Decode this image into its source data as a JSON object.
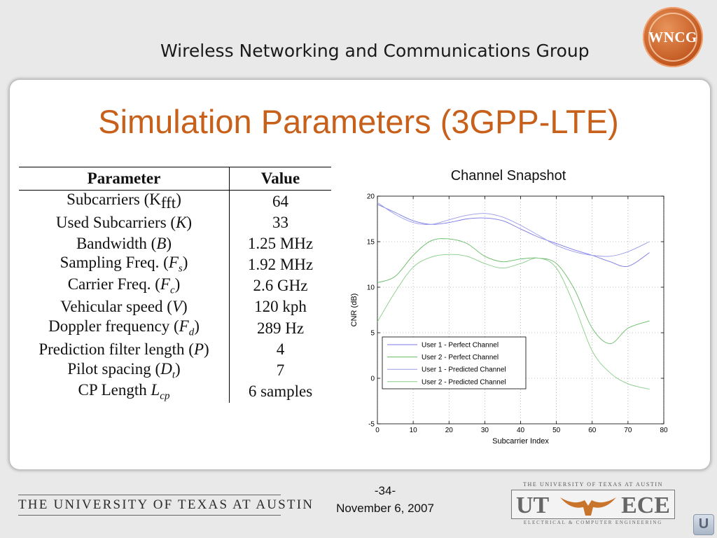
{
  "header": {
    "org": "Wireless Networking and Communications Group",
    "logo_text": "WNCG"
  },
  "slide": {
    "title": "Simulation Parameters (3GPP-LTE)"
  },
  "table": {
    "headers": [
      "Parameter",
      "Value"
    ],
    "rows": [
      {
        "param": "Subcarriers (K",
        "sym": "fft",
        "close": ")",
        "value": "64"
      },
      {
        "param": "Used Subcarriers (",
        "sym": "K",
        "close": ")",
        "value": "33"
      },
      {
        "param": "Bandwidth (",
        "sym": "B",
        "close": ")",
        "value": "1.25 MHz"
      },
      {
        "param": "Sampling Freq. (",
        "sym": "F",
        "sub": "s",
        "close": ")",
        "value": "1.92 MHz"
      },
      {
        "param": "Carrier Freq. (",
        "sym": "F",
        "sub": "c",
        "close": ")",
        "value": "2.6 GHz"
      },
      {
        "param": "Vehicular speed (",
        "sym": "V",
        "close": ")",
        "value": "120 kph"
      },
      {
        "param": "Doppler frequency (",
        "sym": "F",
        "sub": "d",
        "close": ")",
        "value": "289 Hz"
      },
      {
        "param": "Prediction filter length (",
        "sym": "P",
        "close": ")",
        "value": "4"
      },
      {
        "param": "Pilot spacing (",
        "sym": "D",
        "sub": "t",
        "close": ")",
        "value": "7"
      },
      {
        "param": "CP Length ",
        "sym": "L",
        "sub": "cp",
        "close": "",
        "value": "6 samples"
      }
    ]
  },
  "chart_data": {
    "type": "line",
    "title": "Channel Snapshot",
    "xlabel": "Subcarrier Index",
    "ylabel": "CNR (dB)",
    "xlim": [
      0,
      80
    ],
    "ylim": [
      -5,
      20
    ],
    "xticks": [
      0,
      10,
      20,
      30,
      40,
      50,
      60,
      70,
      80
    ],
    "yticks": [
      -5,
      0,
      5,
      10,
      15,
      20
    ],
    "grid": true,
    "legend_position": "lower-left",
    "series": [
      {
        "name": "User 1 - Perfect Channel",
        "color": "#7a7ae6",
        "x": [
          0,
          5,
          10,
          15,
          20,
          25,
          30,
          35,
          40,
          45,
          50,
          55,
          60,
          65,
          70,
          76
        ],
        "y": [
          19.1,
          18.2,
          17.3,
          16.9,
          17.1,
          17.5,
          17.6,
          17.3,
          16.4,
          15.5,
          14.8,
          14.1,
          13.5,
          12.8,
          12.3,
          13.8
        ]
      },
      {
        "name": "User 2 - Perfect Channel",
        "color": "#66bb66",
        "x": [
          0,
          5,
          10,
          15,
          20,
          25,
          30,
          35,
          40,
          45,
          50,
          55,
          60,
          65,
          70,
          76
        ],
        "y": [
          10.5,
          11.2,
          13.5,
          15.1,
          15.3,
          14.8,
          13.4,
          12.8,
          13.1,
          13.2,
          12.6,
          9.8,
          5.5,
          3.8,
          5.5,
          6.3
        ]
      },
      {
        "name": "User 1 - Predicted Channel",
        "color": "#9a9ae8",
        "x": [
          0,
          5,
          10,
          15,
          20,
          25,
          30,
          35,
          40,
          45,
          50,
          55,
          60,
          65,
          70,
          76
        ],
        "y": [
          19.3,
          18.0,
          17.1,
          16.9,
          17.4,
          17.9,
          18.1,
          17.7,
          16.8,
          15.7,
          14.6,
          13.9,
          13.5,
          13.4,
          13.9,
          15.0
        ]
      },
      {
        "name": "User 2 - Predicted Channel",
        "color": "#88cc88",
        "x": [
          0,
          5,
          10,
          15,
          20,
          25,
          30,
          35,
          40,
          45,
          50,
          55,
          60,
          65,
          70,
          76
        ],
        "y": [
          6.2,
          9.5,
          12.2,
          13.3,
          13.6,
          13.4,
          12.6,
          12.1,
          12.6,
          13.2,
          12.1,
          8.0,
          3.0,
          0.6,
          -0.6,
          -1.2
        ]
      }
    ]
  },
  "footer": {
    "university": "THE UNIVERSITY OF TEXAS AT AUSTIN",
    "page_number": "-34-",
    "date": "November 6, 2007",
    "ece_top": "THE UNIVERSITY OF TEXAS AT AUSTIN",
    "ece_left": "UT",
    "ece_right": "ECE",
    "ece_bottom": "ELECTRICAL & COMPUTER ENGINEERING",
    "corner_icon_text": "U"
  }
}
